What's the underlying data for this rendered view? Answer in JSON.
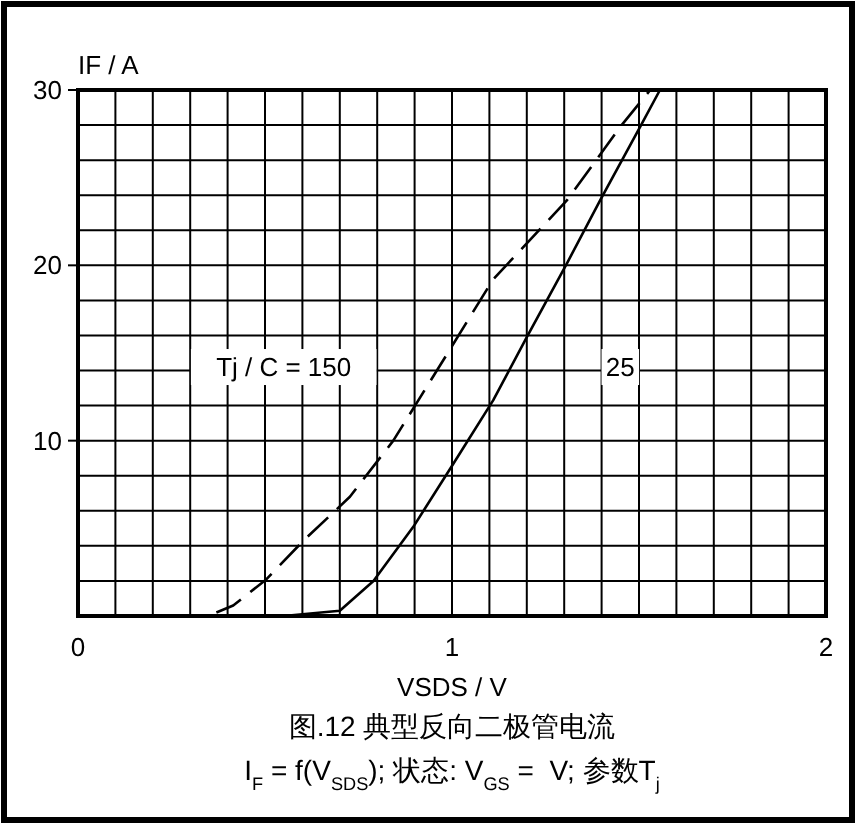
{
  "chart_data": {
    "type": "line",
    "title": "图.12 典型反向二极管电流",
    "subtitle": "I$_{F}$ = f(V$_{SDS}$); 状态: V$_{GS}$ =  V; 参数T$_{j}$",
    "xlabel": "VSDS / V",
    "ylabel": "IF / A",
    "xlim": [
      0,
      2
    ],
    "ylim": [
      0,
      30
    ],
    "xticks": [
      0,
      {
        "value": 0.1,
        "label": null
      },
      {
        "value": 0.2,
        "label": null
      },
      {
        "value": 0.3,
        "label": null
      },
      {
        "value": 0.4,
        "label": null
      },
      {
        "value": 0.5,
        "label": null
      },
      {
        "value": 0.6,
        "label": null
      },
      {
        "value": 0.7,
        "label": null
      },
      {
        "value": 0.8,
        "label": null
      },
      {
        "value": 0.9,
        "label": null
      },
      1,
      {
        "value": 1.1,
        "label": null
      },
      {
        "value": 1.2,
        "label": null
      },
      {
        "value": 1.3,
        "label": null
      },
      {
        "value": 1.4,
        "label": null
      },
      {
        "value": 1.5,
        "label": null
      },
      {
        "value": 1.6,
        "label": null
      },
      {
        "value": 1.7,
        "label": null
      },
      {
        "value": 1.8,
        "label": null
      },
      {
        "value": 1.9,
        "label": null
      },
      2
    ],
    "yticks": [
      {
        "value": 0,
        "label": null
      },
      {
        "value": 2,
        "label": null
      },
      {
        "value": 4,
        "label": null
      },
      {
        "value": 6,
        "label": null
      },
      {
        "value": 8,
        "label": null
      },
      10,
      {
        "value": 12,
        "label": null
      },
      {
        "value": 14,
        "label": null
      },
      {
        "value": 16,
        "label": null
      },
      {
        "value": 18,
        "label": null
      },
      20,
      {
        "value": 22,
        "label": null
      },
      {
        "value": 24,
        "label": null
      },
      {
        "value": 26,
        "label": null
      },
      {
        "value": 28,
        "label": null
      },
      30
    ],
    "grid": true,
    "marker": "none",
    "series": [
      {
        "color": "#000000",
        "line_style": "dashed",
        "x": [
          0.37,
          0.415,
          0.504,
          0.603,
          0.727,
          0.843,
          0.977,
          1.11,
          1.307,
          1.45,
          1.53
        ],
        "values": [
          0.2,
          0.6,
          2.1,
          4.3,
          6.8,
          10.0,
          14.6,
          19.2,
          23.7,
          27.9,
          30
        ]
      },
      {
        "color": "#000000",
        "line_style": "solid",
        "x": [
          0,
          0.3,
          0.55,
          0.7,
          0.79,
          0.897,
          1.004,
          1.11,
          1.2,
          1.307,
          1.396,
          1.503,
          1.556
        ],
        "values": [
          0,
          0,
          0,
          0.3,
          2,
          5.1,
          8.7,
          12.3,
          15.9,
          20.1,
          23.7,
          27.9,
          30
        ]
      }
    ],
    "annotations": [
      "Tj / C = 150",
      "25"
    ]
  }
}
